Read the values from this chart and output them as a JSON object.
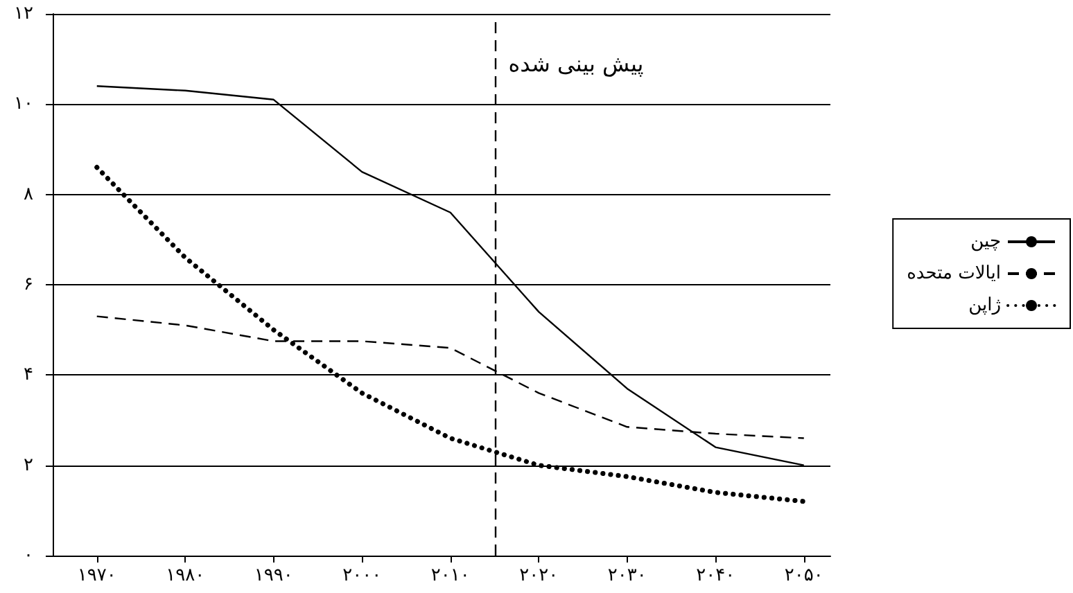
{
  "chart_data": {
    "type": "line",
    "x": [
      1970,
      1980,
      1990,
      2000,
      2010,
      2020,
      2030,
      2040,
      2050
    ],
    "series": [
      {
        "name": "چین",
        "color": "#000000",
        "line_style": "solid",
        "values": [
          10.4,
          10.3,
          10.1,
          8.5,
          7.6,
          5.4,
          3.7,
          2.4,
          2.0
        ]
      },
      {
        "name": "ایالات متحده",
        "color": "#000000",
        "line_style": "dashed",
        "values": [
          5.3,
          5.1,
          4.75,
          4.75,
          4.6,
          3.6,
          2.85,
          2.7,
          2.6
        ]
      },
      {
        "name": "ژاپن",
        "color": "#000000",
        "line_style": "dotted",
        "values": [
          8.6,
          6.6,
          5.0,
          3.6,
          2.6,
          2.0,
          1.75,
          1.4,
          1.2
        ]
      }
    ],
    "xlim": [
      1965,
      2053
    ],
    "xticks": [
      {
        "value": 1970,
        "label": "۱۹۷۰"
      },
      {
        "value": 1980,
        "label": "۱۹۸۰"
      },
      {
        "value": 1990,
        "label": "۱۹۹۰"
      },
      {
        "value": 2000,
        "label": "۲۰۰۰"
      },
      {
        "value": 2010,
        "label": "۲۰۱۰"
      },
      {
        "value": 2020,
        "label": "۲۰۲۰"
      },
      {
        "value": 2030,
        "label": "۲۰۳۰"
      },
      {
        "value": 2040,
        "label": "۲۰۴۰"
      },
      {
        "value": 2050,
        "label": "۲۰۵۰"
      }
    ],
    "ylim": [
      0,
      12
    ],
    "yticks": [
      {
        "value": 0,
        "label": "۰"
      },
      {
        "value": 2,
        "label": "۲"
      },
      {
        "value": 4,
        "label": "۴"
      },
      {
        "value": 6,
        "label": "۶"
      },
      {
        "value": 8,
        "label": "۸"
      },
      {
        "value": 10,
        "label": "۱۰"
      },
      {
        "value": 12,
        "label": "۱۲"
      }
    ],
    "ref_lines": [
      {
        "axis": "x",
        "value": 2015,
        "label": "پیش بینی شده",
        "color": "#000000",
        "line_style": "dashed"
      }
    ],
    "grid": "y",
    "legend": "right",
    "marker": "none"
  }
}
